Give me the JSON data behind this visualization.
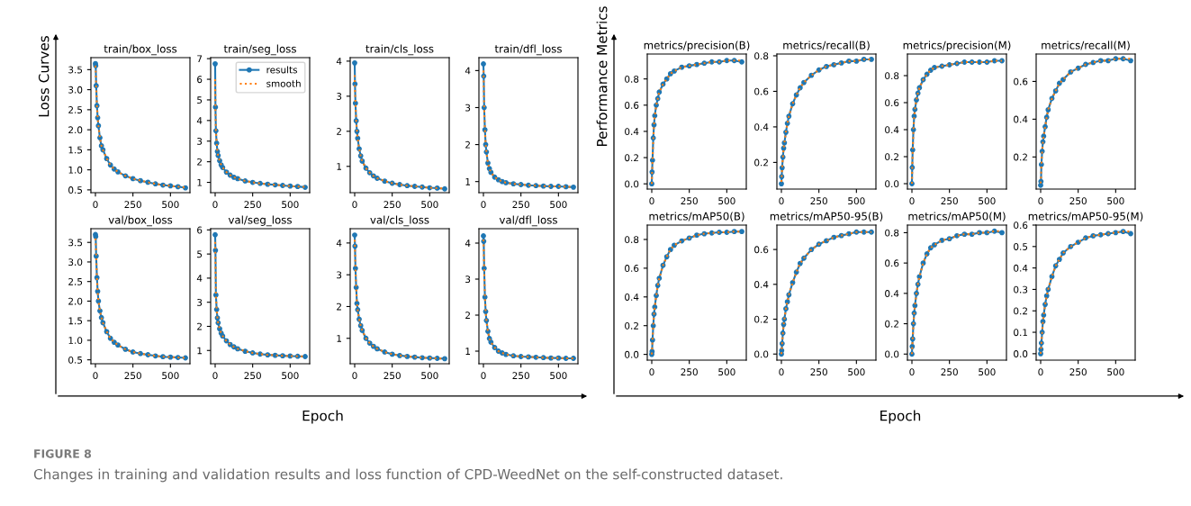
{
  "chart_data": [
    {
      "type": "line",
      "title": "train/box_loss",
      "x": [
        0,
        2,
        5,
        10,
        15,
        20,
        30,
        40,
        50,
        75,
        100,
        125,
        150,
        200,
        250,
        300,
        350,
        400,
        450,
        500,
        550,
        600
      ],
      "xlim": [
        -30,
        630
      ],
      "xticks": [
        0,
        250,
        500
      ],
      "ylim": [
        0.43,
        3.8
      ],
      "yticks": [
        0.5,
        {
          "value": 1,
          "label": "1.0"
        },
        1.5,
        {
          "value": 2,
          "label": "2.0"
        },
        2.5,
        {
          "value": 3,
          "label": "3.0"
        },
        3.5
      ],
      "legend": false,
      "annotations": [
        "Loss Curves",
        "Epoch",
        "FIGURE 8",
        "Changes in training and validation results and loss function of CPD-WeedNet on the self-constructed dataset."
      ],
      "series": [
        {
          "color": "#1f77b4",
          "marker": "circle",
          "line_style": "solid",
          "values": [
            3.65,
            3.6,
            3.1,
            2.6,
            2.3,
            2.1,
            1.8,
            1.6,
            1.5,
            1.28,
            1.12,
            1.02,
            0.95,
            0.85,
            0.78,
            0.73,
            0.69,
            0.65,
            0.62,
            0.6,
            0.58,
            0.55
          ]
        },
        {
          "color": "#ff7f0e",
          "marker": "none",
          "line_style": "dotted",
          "values": [
            3.6,
            3.5,
            3.1,
            2.6,
            2.3,
            2.1,
            1.8,
            1.6,
            1.5,
            1.28,
            1.12,
            1.02,
            0.95,
            0.85,
            0.78,
            0.73,
            0.69,
            0.65,
            0.62,
            0.6,
            0.58,
            0.56
          ]
        }
      ]
    },
    {
      "type": "line",
      "title": "train/seg_loss",
      "x": [
        0,
        2,
        5,
        10,
        15,
        20,
        30,
        40,
        50,
        75,
        100,
        125,
        150,
        200,
        250,
        300,
        350,
        400,
        450,
        500,
        550,
        600
      ],
      "xlim": [
        -30,
        630
      ],
      "xticks": [
        0,
        250,
        500
      ],
      "ylim": [
        0.5,
        7.05
      ],
      "yticks": [
        1,
        2,
        3,
        4,
        5,
        6,
        7
      ],
      "legend": "upper right",
      "series": [
        {
          "name": "results",
          "color": "#1f77b4",
          "marker": "circle",
          "line_style": "solid",
          "values": [
            6.75,
            4.65,
            3.5,
            2.9,
            2.5,
            2.3,
            2.05,
            1.85,
            1.72,
            1.5,
            1.35,
            1.25,
            1.18,
            1.07,
            1.0,
            0.95,
            0.91,
            0.88,
            0.85,
            0.82,
            0.8,
            0.76
          ]
        },
        {
          "name": "smooth",
          "color": "#ff7f0e",
          "marker": "none",
          "line_style": "dotted",
          "values": [
            6.0,
            4.5,
            3.5,
            2.9,
            2.5,
            2.3,
            2.05,
            1.85,
            1.72,
            1.5,
            1.35,
            1.25,
            1.18,
            1.07,
            1.0,
            0.95,
            0.91,
            0.88,
            0.85,
            0.82,
            0.8,
            0.78
          ]
        }
      ]
    },
    {
      "type": "line",
      "title": "train/cls_loss",
      "x": [
        0,
        2,
        5,
        10,
        15,
        20,
        30,
        40,
        50,
        75,
        100,
        125,
        150,
        200,
        250,
        300,
        350,
        400,
        450,
        500,
        550,
        600
      ],
      "xlim": [
        -30,
        630
      ],
      "xticks": [
        0,
        250,
        500
      ],
      "ylim": [
        0.25,
        4.1
      ],
      "yticks": [
        1,
        2,
        3,
        4
      ],
      "legend": false,
      "series": [
        {
          "color": "#1f77b4",
          "marker": "circle",
          "line_style": "solid",
          "values": [
            3.95,
            3.35,
            2.8,
            2.3,
            2.0,
            1.8,
            1.5,
            1.3,
            1.15,
            0.95,
            0.82,
            0.73,
            0.66,
            0.58,
            0.52,
            0.48,
            0.45,
            0.43,
            0.41,
            0.39,
            0.38,
            0.36
          ]
        },
        {
          "color": "#ff7f0e",
          "marker": "none",
          "line_style": "dotted",
          "values": [
            3.6,
            3.2,
            2.8,
            2.3,
            2.0,
            1.8,
            1.5,
            1.3,
            1.15,
            0.95,
            0.82,
            0.73,
            0.66,
            0.58,
            0.52,
            0.48,
            0.45,
            0.43,
            0.41,
            0.39,
            0.38,
            0.37
          ]
        }
      ]
    },
    {
      "type": "line",
      "title": "train/dfl_loss",
      "x": [
        0,
        2,
        5,
        10,
        15,
        20,
        30,
        40,
        50,
        75,
        100,
        125,
        150,
        200,
        250,
        300,
        350,
        400,
        450,
        500,
        550,
        600
      ],
      "xlim": [
        -30,
        630
      ],
      "xticks": [
        0,
        250,
        500
      ],
      "ylim": [
        0.7,
        4.35
      ],
      "yticks": [
        1,
        2,
        3,
        4
      ],
      "legend": false,
      "series": [
        {
          "color": "#1f77b4",
          "marker": "circle",
          "line_style": "solid",
          "values": [
            4.18,
            3.85,
            3.0,
            2.4,
            2.0,
            1.8,
            1.5,
            1.35,
            1.25,
            1.12,
            1.05,
            1.0,
            0.97,
            0.94,
            0.92,
            0.9,
            0.89,
            0.88,
            0.87,
            0.87,
            0.86,
            0.85
          ]
        },
        {
          "color": "#ff7f0e",
          "marker": "none",
          "line_style": "dotted",
          "values": [
            4.0,
            3.7,
            3.0,
            2.4,
            2.0,
            1.8,
            1.5,
            1.35,
            1.25,
            1.12,
            1.05,
            1.0,
            0.97,
            0.94,
            0.92,
            0.9,
            0.89,
            0.88,
            0.87,
            0.87,
            0.86,
            0.86
          ]
        }
      ]
    },
    {
      "type": "line",
      "title": "val/box_loss",
      "x": [
        0,
        2,
        5,
        10,
        15,
        20,
        30,
        40,
        50,
        75,
        100,
        125,
        150,
        200,
        250,
        300,
        350,
        400,
        450,
        500,
        550,
        600
      ],
      "xlim": [
        -30,
        630
      ],
      "xticks": [
        0,
        250,
        500
      ],
      "ylim": [
        0.4,
        3.85
      ],
      "yticks": [
        0.5,
        {
          "value": 1,
          "label": "1.0"
        },
        1.5,
        {
          "value": 2,
          "label": "2.0"
        },
        2.5,
        {
          "value": 3,
          "label": "3.0"
        },
        3.5
      ],
      "legend": false,
      "series": [
        {
          "color": "#1f77b4",
          "marker": "circle",
          "line_style": "solid",
          "values": [
            3.7,
            3.65,
            3.15,
            2.6,
            2.25,
            2.0,
            1.75,
            1.58,
            1.45,
            1.22,
            1.05,
            0.95,
            0.88,
            0.77,
            0.7,
            0.66,
            0.63,
            0.6,
            0.58,
            0.57,
            0.56,
            0.55
          ]
        },
        {
          "color": "#ff7f0e",
          "marker": "none",
          "line_style": "dotted",
          "values": [
            3.6,
            3.5,
            3.15,
            2.6,
            2.25,
            2.0,
            1.75,
            1.58,
            1.45,
            1.22,
            1.05,
            0.95,
            0.88,
            0.77,
            0.7,
            0.66,
            0.63,
            0.6,
            0.58,
            0.57,
            0.56,
            0.55
          ]
        }
      ]
    },
    {
      "type": "line",
      "title": "val/seg_loss",
      "x": [
        0,
        2,
        5,
        10,
        15,
        20,
        30,
        40,
        50,
        75,
        100,
        125,
        150,
        200,
        250,
        300,
        350,
        400,
        450,
        500,
        550,
        600
      ],
      "xlim": [
        -30,
        630
      ],
      "xticks": [
        0,
        250,
        500
      ],
      "ylim": [
        0.45,
        6.05
      ],
      "yticks": [
        1,
        2,
        3,
        4,
        5,
        6
      ],
      "legend": false,
      "series": [
        {
          "color": "#1f77b4",
          "marker": "circle",
          "line_style": "solid",
          "values": [
            5.8,
            5.15,
            3.3,
            2.7,
            2.35,
            2.15,
            1.9,
            1.72,
            1.6,
            1.4,
            1.25,
            1.15,
            1.07,
            0.97,
            0.9,
            0.85,
            0.82,
            0.8,
            0.78,
            0.77,
            0.76,
            0.75
          ]
        },
        {
          "color": "#ff7f0e",
          "marker": "none",
          "line_style": "dotted",
          "values": [
            5.5,
            4.8,
            3.3,
            2.7,
            2.35,
            2.15,
            1.9,
            1.72,
            1.6,
            1.4,
            1.25,
            1.15,
            1.07,
            0.97,
            0.9,
            0.85,
            0.82,
            0.8,
            0.78,
            0.77,
            0.76,
            0.75
          ]
        }
      ]
    },
    {
      "type": "line",
      "title": "val/cls_loss",
      "x": [
        0,
        2,
        5,
        10,
        15,
        20,
        30,
        40,
        50,
        75,
        100,
        125,
        150,
        200,
        250,
        300,
        350,
        400,
        450,
        500,
        550,
        600
      ],
      "xlim": [
        -30,
        630
      ],
      "xticks": [
        0,
        250,
        500
      ],
      "ylim": [
        0.2,
        4.45
      ],
      "yticks": [
        1,
        2,
        3,
        4
      ],
      "legend": false,
      "series": [
        {
          "color": "#1f77b4",
          "marker": "circle",
          "line_style": "solid",
          "values": [
            4.25,
            3.9,
            3.2,
            2.6,
            2.1,
            1.9,
            1.6,
            1.4,
            1.25,
            1.0,
            0.85,
            0.75,
            0.67,
            0.57,
            0.5,
            0.46,
            0.43,
            0.41,
            0.39,
            0.38,
            0.37,
            0.36
          ]
        },
        {
          "color": "#ff7f0e",
          "marker": "none",
          "line_style": "dotted",
          "values": [
            4.1,
            3.8,
            3.2,
            2.6,
            2.1,
            1.9,
            1.6,
            1.4,
            1.25,
            1.0,
            0.85,
            0.75,
            0.67,
            0.57,
            0.5,
            0.46,
            0.43,
            0.41,
            0.39,
            0.38,
            0.37,
            0.36
          ]
        }
      ]
    },
    {
      "type": "line",
      "title": "val/dfl_loss",
      "x": [
        0,
        2,
        5,
        10,
        15,
        20,
        30,
        40,
        50,
        75,
        100,
        125,
        150,
        200,
        250,
        300,
        350,
        400,
        450,
        500,
        550,
        600
      ],
      "xlim": [
        -30,
        630
      ],
      "xticks": [
        0,
        250,
        500
      ],
      "ylim": [
        0.65,
        4.4
      ],
      "yticks": [
        1,
        2,
        3,
        4
      ],
      "legend": false,
      "series": [
        {
          "color": "#1f77b4",
          "marker": "circle",
          "line_style": "solid",
          "values": [
            4.2,
            4.05,
            3.3,
            2.5,
            2.1,
            1.85,
            1.55,
            1.35,
            1.25,
            1.1,
            1.0,
            0.95,
            0.91,
            0.87,
            0.85,
            0.84,
            0.83,
            0.82,
            0.81,
            0.81,
            0.8,
            0.8
          ]
        },
        {
          "color": "#ff7f0e",
          "marker": "none",
          "line_style": "dotted",
          "values": [
            4.1,
            3.9,
            3.3,
            2.5,
            2.1,
            1.85,
            1.55,
            1.35,
            1.25,
            1.1,
            1.0,
            0.95,
            0.91,
            0.87,
            0.85,
            0.84,
            0.83,
            0.82,
            0.81,
            0.81,
            0.8,
            0.8
          ]
        }
      ]
    },
    {
      "type": "line",
      "title": "metrics/precision(B)",
      "x": [
        0,
        2,
        5,
        10,
        15,
        20,
        30,
        40,
        50,
        75,
        100,
        125,
        150,
        200,
        250,
        300,
        350,
        400,
        450,
        500,
        550,
        600
      ],
      "xlim": [
        -30,
        630
      ],
      "xticks": [
        0,
        250,
        500
      ],
      "ylim": [
        -0.04,
        0.99
      ],
      "yticks": [
        {
          "value": 0,
          "label": "0.0"
        },
        0.2,
        0.4,
        0.6,
        0.8
      ],
      "legend": false,
      "annotations": [
        "Performance Metrics",
        "Epoch"
      ],
      "series": [
        {
          "color": "#1f77b4",
          "marker": "circle",
          "line_style": "solid",
          "values": [
            0.0,
            0.09,
            0.18,
            0.35,
            0.45,
            0.52,
            0.6,
            0.65,
            0.7,
            0.76,
            0.8,
            0.84,
            0.86,
            0.89,
            0.9,
            0.91,
            0.92,
            0.93,
            0.93,
            0.94,
            0.94,
            0.93
          ]
        },
        {
          "color": "#ff7f0e",
          "marker": "none",
          "line_style": "dotted",
          "values": [
            0.0,
            0.08,
            0.18,
            0.34,
            0.45,
            0.52,
            0.6,
            0.65,
            0.7,
            0.76,
            0.8,
            0.84,
            0.86,
            0.89,
            0.9,
            0.91,
            0.92,
            0.93,
            0.93,
            0.94,
            0.94,
            0.94
          ]
        }
      ]
    },
    {
      "type": "line",
      "title": "metrics/recall(B)",
      "x": [
        0,
        2,
        5,
        10,
        15,
        20,
        30,
        40,
        50,
        75,
        100,
        125,
        150,
        200,
        250,
        300,
        350,
        400,
        450,
        500,
        550,
        600
      ],
      "xlim": [
        -30,
        630
      ],
      "xticks": [
        0,
        250,
        500
      ],
      "ylim": [
        0.05,
        0.81
      ],
      "yticks": [
        0.2,
        0.4,
        0.6,
        0.8
      ],
      "legend": false,
      "series": [
        {
          "color": "#1f77b4",
          "marker": "circle",
          "line_style": "solid",
          "values": [
            0.08,
            0.12,
            0.17,
            0.23,
            0.28,
            0.31,
            0.37,
            0.42,
            0.46,
            0.53,
            0.58,
            0.62,
            0.65,
            0.69,
            0.72,
            0.74,
            0.75,
            0.76,
            0.77,
            0.77,
            0.78,
            0.78
          ]
        },
        {
          "color": "#ff7f0e",
          "marker": "none",
          "line_style": "dotted",
          "values": [
            0.09,
            0.12,
            0.17,
            0.23,
            0.28,
            0.31,
            0.37,
            0.42,
            0.46,
            0.53,
            0.58,
            0.62,
            0.65,
            0.69,
            0.72,
            0.74,
            0.75,
            0.76,
            0.77,
            0.77,
            0.78,
            0.78
          ]
        }
      ]
    },
    {
      "type": "line",
      "title": "metrics/precision(M)",
      "x": [
        0,
        2,
        5,
        10,
        15,
        20,
        30,
        40,
        50,
        75,
        100,
        125,
        150,
        200,
        250,
        300,
        350,
        400,
        450,
        500,
        550,
        600
      ],
      "xlim": [
        -30,
        630
      ],
      "xticks": [
        0,
        250,
        500
      ],
      "ylim": [
        -0.04,
        0.96
      ],
      "yticks": [
        {
          "value": 0,
          "label": "0.0"
        },
        0.2,
        0.4,
        0.6,
        0.8
      ],
      "legend": false,
      "series": [
        {
          "color": "#1f77b4",
          "marker": "circle",
          "line_style": "solid",
          "values": [
            0.0,
            0.12,
            0.25,
            0.4,
            0.5,
            0.55,
            0.62,
            0.67,
            0.71,
            0.77,
            0.81,
            0.84,
            0.86,
            0.87,
            0.88,
            0.89,
            0.9,
            0.9,
            0.9,
            0.9,
            0.91,
            0.91
          ]
        },
        {
          "color": "#ff7f0e",
          "marker": "none",
          "line_style": "dotted",
          "values": [
            0.0,
            0.11,
            0.24,
            0.4,
            0.5,
            0.55,
            0.62,
            0.67,
            0.71,
            0.77,
            0.81,
            0.84,
            0.86,
            0.87,
            0.88,
            0.89,
            0.9,
            0.9,
            0.9,
            0.9,
            0.91,
            0.91
          ]
        }
      ]
    },
    {
      "type": "line",
      "title": "metrics/recall(M)",
      "x": [
        0,
        2,
        5,
        10,
        15,
        20,
        30,
        40,
        50,
        75,
        100,
        125,
        150,
        200,
        250,
        300,
        350,
        400,
        450,
        500,
        550,
        600
      ],
      "xlim": [
        -30,
        630
      ],
      "xticks": [
        0,
        250,
        500
      ],
      "ylim": [
        0.03,
        0.745
      ],
      "yticks": [
        0.2,
        0.4,
        0.6
      ],
      "legend": false,
      "series": [
        {
          "color": "#1f77b4",
          "marker": "circle",
          "line_style": "solid",
          "values": [
            0.05,
            0.07,
            0.16,
            0.23,
            0.28,
            0.31,
            0.36,
            0.41,
            0.45,
            0.51,
            0.55,
            0.59,
            0.61,
            0.65,
            0.67,
            0.69,
            0.7,
            0.71,
            0.71,
            0.72,
            0.72,
            0.71
          ]
        },
        {
          "color": "#ff7f0e",
          "marker": "none",
          "line_style": "dotted",
          "values": [
            0.06,
            0.08,
            0.16,
            0.23,
            0.28,
            0.31,
            0.36,
            0.41,
            0.45,
            0.51,
            0.55,
            0.59,
            0.61,
            0.65,
            0.67,
            0.69,
            0.7,
            0.71,
            0.71,
            0.72,
            0.72,
            0.72
          ]
        }
      ]
    },
    {
      "type": "line",
      "title": "metrics/mAP50(B)",
      "x": [
        0,
        2,
        5,
        10,
        15,
        20,
        30,
        40,
        50,
        75,
        100,
        125,
        150,
        200,
        250,
        300,
        350,
        400,
        450,
        500,
        550,
        600
      ],
      "xlim": [
        -30,
        630
      ],
      "xticks": [
        0,
        250,
        500
      ],
      "ylim": [
        -0.04,
        0.9
      ],
      "yticks": [
        {
          "value": 0,
          "label": "0.0"
        },
        0.2,
        0.4,
        0.6,
        0.8
      ],
      "legend": false,
      "series": [
        {
          "color": "#1f77b4",
          "marker": "circle",
          "line_style": "solid",
          "values": [
            0.0,
            0.02,
            0.1,
            0.2,
            0.28,
            0.33,
            0.41,
            0.48,
            0.53,
            0.62,
            0.68,
            0.73,
            0.76,
            0.79,
            0.81,
            0.83,
            0.84,
            0.845,
            0.85,
            0.85,
            0.855,
            0.855
          ]
        },
        {
          "color": "#ff7f0e",
          "marker": "none",
          "line_style": "dotted",
          "values": [
            0.0,
            0.03,
            0.1,
            0.2,
            0.28,
            0.33,
            0.41,
            0.48,
            0.53,
            0.62,
            0.68,
            0.73,
            0.76,
            0.79,
            0.81,
            0.83,
            0.84,
            0.845,
            0.85,
            0.85,
            0.855,
            0.855
          ]
        }
      ]
    },
    {
      "type": "line",
      "title": "metrics/mAP50-95(B)",
      "x": [
        0,
        2,
        5,
        10,
        15,
        20,
        30,
        40,
        50,
        75,
        100,
        125,
        150,
        200,
        250,
        300,
        350,
        400,
        450,
        500,
        550,
        600
      ],
      "xlim": [
        -30,
        630
      ],
      "xticks": [
        0,
        250,
        500
      ],
      "ylim": [
        -0.035,
        0.74
      ],
      "yticks": [
        {
          "value": 0,
          "label": "0.0"
        },
        0.2,
        0.4,
        0.6
      ],
      "legend": false,
      "series": [
        {
          "color": "#1f77b4",
          "marker": "circle",
          "line_style": "solid",
          "values": [
            0.0,
            0.02,
            0.06,
            0.12,
            0.17,
            0.2,
            0.26,
            0.3,
            0.34,
            0.41,
            0.47,
            0.52,
            0.55,
            0.6,
            0.63,
            0.65,
            0.67,
            0.68,
            0.69,
            0.7,
            0.7,
            0.7
          ]
        },
        {
          "color": "#ff7f0e",
          "marker": "none",
          "line_style": "dotted",
          "values": [
            0.0,
            0.02,
            0.06,
            0.12,
            0.17,
            0.2,
            0.26,
            0.3,
            0.34,
            0.41,
            0.47,
            0.52,
            0.55,
            0.6,
            0.63,
            0.65,
            0.67,
            0.68,
            0.69,
            0.7,
            0.7,
            0.7
          ]
        }
      ]
    },
    {
      "type": "line",
      "title": "metrics/mAP50(M)",
      "x": [
        0,
        2,
        5,
        10,
        15,
        20,
        30,
        40,
        50,
        75,
        100,
        125,
        150,
        200,
        250,
        300,
        350,
        400,
        450,
        500,
        550,
        600
      ],
      "xlim": [
        -30,
        630
      ],
      "xticks": [
        0,
        250,
        500
      ],
      "ylim": [
        -0.04,
        0.85
      ],
      "yticks": [
        {
          "value": 0,
          "label": "0.0"
        },
        0.2,
        0.4,
        0.6,
        0.8
      ],
      "legend": false,
      "series": [
        {
          "color": "#1f77b4",
          "marker": "circle",
          "line_style": "solid",
          "values": [
            0.0,
            0.05,
            0.1,
            0.2,
            0.27,
            0.32,
            0.4,
            0.46,
            0.51,
            0.6,
            0.66,
            0.7,
            0.72,
            0.75,
            0.76,
            0.78,
            0.79,
            0.79,
            0.8,
            0.8,
            0.81,
            0.8
          ]
        },
        {
          "color": "#ff7f0e",
          "marker": "none",
          "line_style": "dotted",
          "values": [
            0.0,
            0.04,
            0.1,
            0.2,
            0.27,
            0.32,
            0.4,
            0.46,
            0.51,
            0.6,
            0.66,
            0.7,
            0.72,
            0.75,
            0.76,
            0.78,
            0.79,
            0.79,
            0.8,
            0.8,
            0.81,
            0.81
          ]
        }
      ]
    },
    {
      "type": "line",
      "title": "metrics/mAP50-95(M)",
      "x": [
        0,
        2,
        5,
        10,
        15,
        20,
        30,
        40,
        50,
        75,
        100,
        125,
        150,
        200,
        250,
        300,
        350,
        400,
        450,
        500,
        550,
        600
      ],
      "xlim": [
        -30,
        630
      ],
      "xticks": [
        0,
        250,
        500
      ],
      "ylim": [
        -0.03,
        0.6
      ],
      "yticks": [
        {
          "value": 0,
          "label": "0.0"
        },
        0.1,
        0.2,
        0.3,
        0.4,
        0.5,
        0.6
      ],
      "legend": false,
      "series": [
        {
          "color": "#1f77b4",
          "marker": "circle",
          "line_style": "solid",
          "values": [
            0.0,
            0.02,
            0.05,
            0.1,
            0.15,
            0.18,
            0.23,
            0.27,
            0.3,
            0.36,
            0.41,
            0.44,
            0.47,
            0.5,
            0.52,
            0.54,
            0.55,
            0.555,
            0.56,
            0.565,
            0.57,
            0.56
          ]
        },
        {
          "color": "#ff7f0e",
          "marker": "none",
          "line_style": "dotted",
          "values": [
            0.0,
            0.02,
            0.05,
            0.1,
            0.15,
            0.18,
            0.23,
            0.27,
            0.3,
            0.36,
            0.41,
            0.44,
            0.47,
            0.5,
            0.52,
            0.54,
            0.55,
            0.555,
            0.56,
            0.565,
            0.57,
            0.57
          ]
        }
      ]
    }
  ]
}
